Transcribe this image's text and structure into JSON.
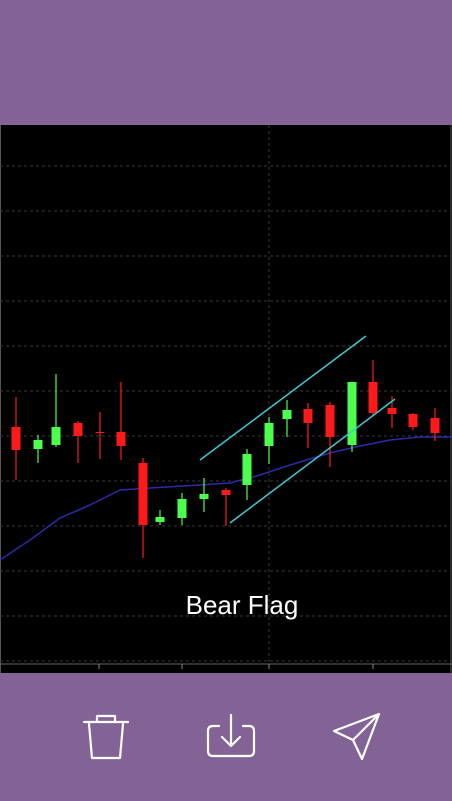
{
  "caption": "Bear Flag"
}
